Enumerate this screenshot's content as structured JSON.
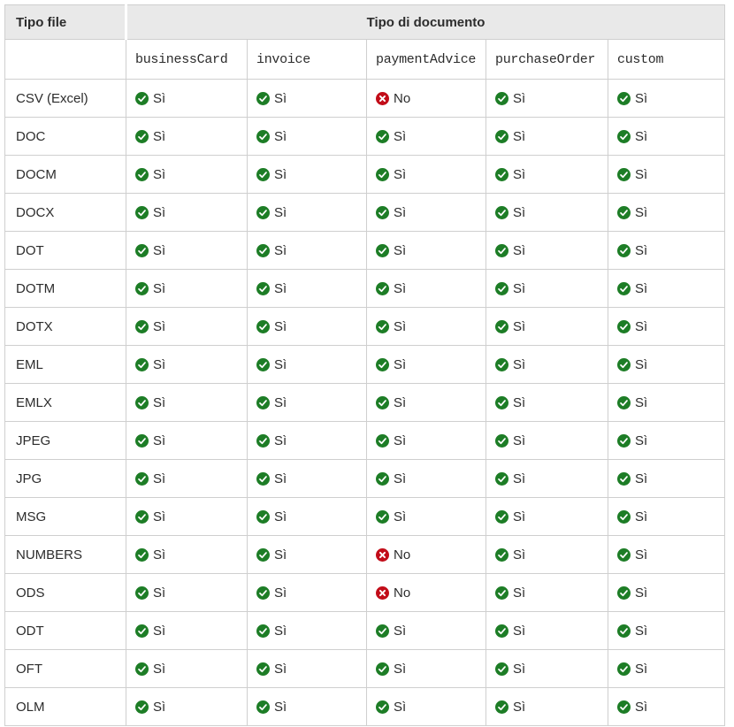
{
  "colors": {
    "positive_green": "#1d7d26",
    "negative_red": "#c20d19",
    "header_bg": "#e9e9e9",
    "border": "#cfcfcf",
    "text": "#2c2c2c"
  },
  "table": {
    "corner_header": "Tipo file",
    "group_header": "Tipo di documento",
    "doc_types": [
      "businessCard",
      "invoice",
      "paymentAdvice",
      "purchaseOrder",
      "custom"
    ],
    "value_labels": {
      "si": "Sì",
      "no": "No"
    },
    "rows": [
      {
        "label": "CSV (Excel)",
        "values": [
          "si",
          "si",
          "no",
          "si",
          "si"
        ]
      },
      {
        "label": "DOC",
        "values": [
          "si",
          "si",
          "si",
          "si",
          "si"
        ]
      },
      {
        "label": "DOCM",
        "values": [
          "si",
          "si",
          "si",
          "si",
          "si"
        ]
      },
      {
        "label": "DOCX",
        "values": [
          "si",
          "si",
          "si",
          "si",
          "si"
        ]
      },
      {
        "label": "DOT",
        "values": [
          "si",
          "si",
          "si",
          "si",
          "si"
        ]
      },
      {
        "label": "DOTM",
        "values": [
          "si",
          "si",
          "si",
          "si",
          "si"
        ]
      },
      {
        "label": "DOTX",
        "values": [
          "si",
          "si",
          "si",
          "si",
          "si"
        ]
      },
      {
        "label": "EML",
        "values": [
          "si",
          "si",
          "si",
          "si",
          "si"
        ]
      },
      {
        "label": "EMLX",
        "values": [
          "si",
          "si",
          "si",
          "si",
          "si"
        ]
      },
      {
        "label": "JPEG",
        "values": [
          "si",
          "si",
          "si",
          "si",
          "si"
        ]
      },
      {
        "label": "JPG",
        "values": [
          "si",
          "si",
          "si",
          "si",
          "si"
        ]
      },
      {
        "label": "MSG",
        "values": [
          "si",
          "si",
          "si",
          "si",
          "si"
        ]
      },
      {
        "label": "NUMBERS",
        "values": [
          "si",
          "si",
          "no",
          "si",
          "si"
        ]
      },
      {
        "label": "ODS",
        "values": [
          "si",
          "si",
          "no",
          "si",
          "si"
        ]
      },
      {
        "label": "ODT",
        "values": [
          "si",
          "si",
          "si",
          "si",
          "si"
        ]
      },
      {
        "label": "OFT",
        "values": [
          "si",
          "si",
          "si",
          "si",
          "si"
        ]
      },
      {
        "label": "OLM",
        "values": [
          "si",
          "si",
          "si",
          "si",
          "si"
        ]
      }
    ]
  }
}
